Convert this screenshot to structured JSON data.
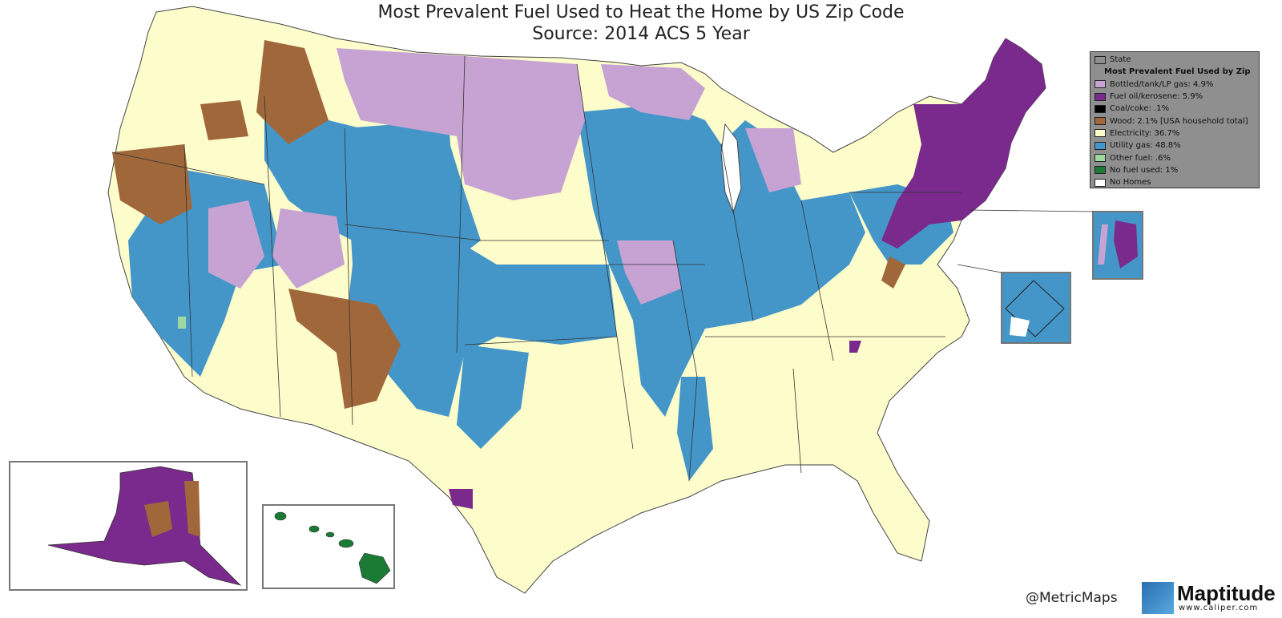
{
  "title": "Most Prevalent Fuel Used to Heat the Home by US Zip Code",
  "subtitle": "Source:  2014 ACS 5 Year",
  "legend": {
    "state_label": "State",
    "heading": "Most Prevalent Fuel Used by Zip",
    "items": [
      {
        "label": "Bottled/tank/LP gas: 4.9%",
        "color": "#c7a3d4"
      },
      {
        "label": "Fuel oil/kerosene: 5.9%",
        "color": "#7a2a8c"
      },
      {
        "label": "Coal/coke: .1%",
        "color": "#000000"
      },
      {
        "label": "Wood: 2.1% [USA household total]",
        "color": "#a0673b"
      },
      {
        "label": "Electricity: 36.7%",
        "color": "#fdfdcb"
      },
      {
        "label": "Utility gas: 48.8%",
        "color": "#4496c9"
      },
      {
        "label": "Other fuel: .6%",
        "color": "#9fd99f"
      },
      {
        "label": "No fuel used: 1%",
        "color": "#1b7a34"
      },
      {
        "label": "No Homes",
        "color": "#ffffff"
      }
    ]
  },
  "credit": "@MetricMaps",
  "logo": {
    "name": "Maptitude",
    "url": "www.caliper.com"
  }
}
